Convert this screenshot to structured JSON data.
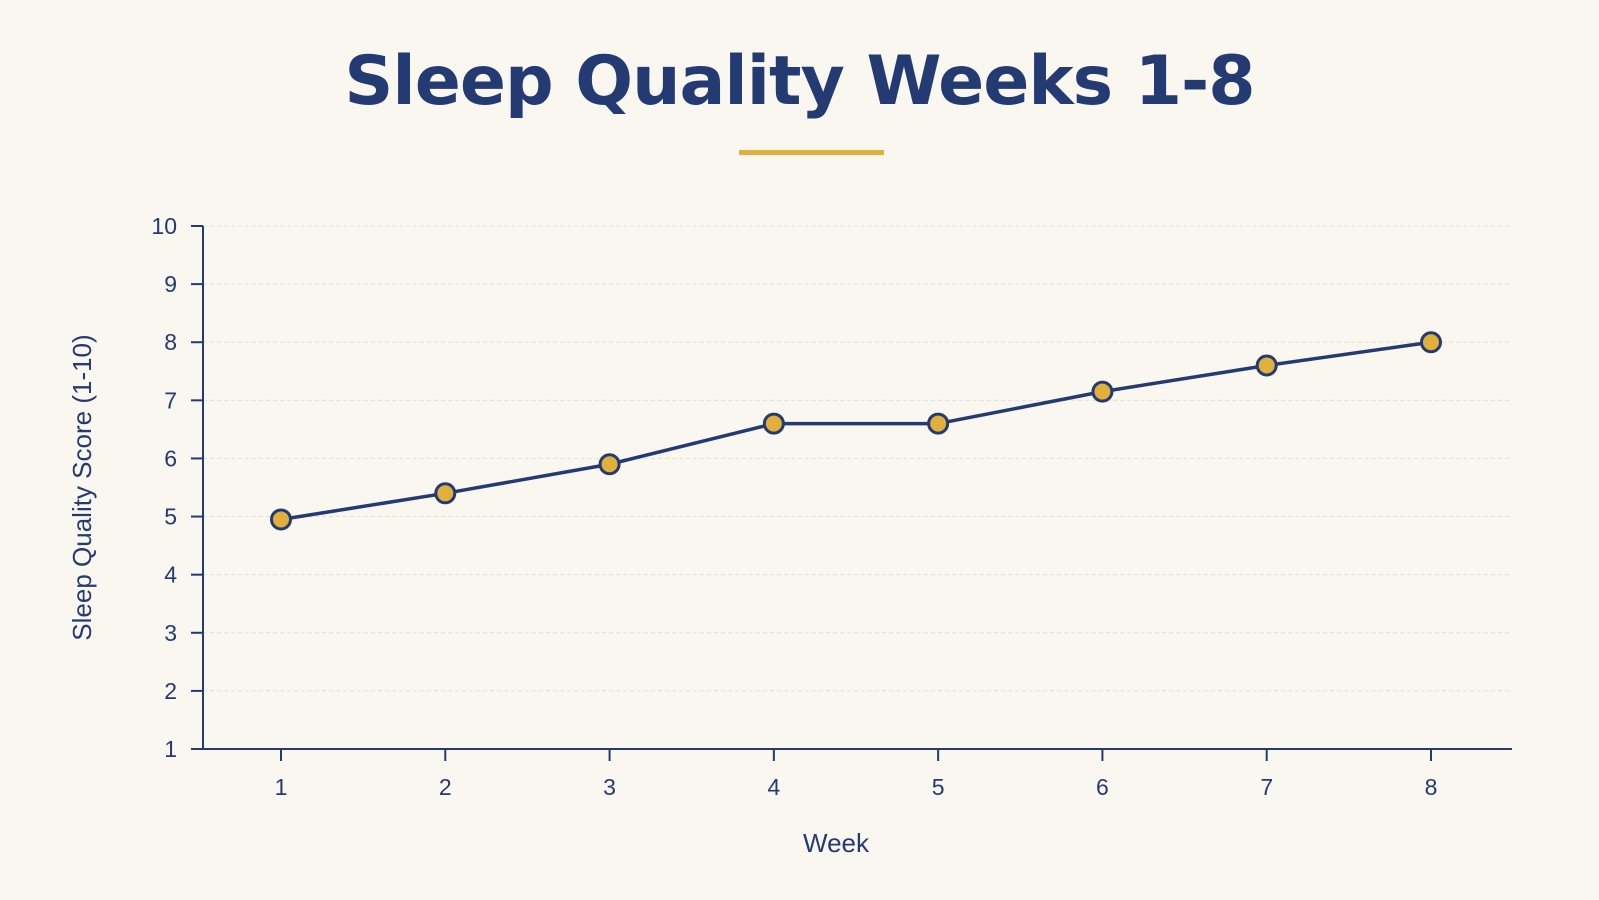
{
  "chart_data": {
    "type": "line",
    "title": "Sleep Quality Weeks 1-8",
    "xlabel": "Week",
    "ylabel": "Sleep Quality Score (1-10)",
    "x": [
      1,
      2,
      3,
      4,
      5,
      6,
      7,
      8
    ],
    "y": [
      4.95,
      5.4,
      5.9,
      6.6,
      6.6,
      7.15,
      7.6,
      8.0
    ],
    "ylim": [
      1,
      10
    ],
    "yticks": [
      1,
      2,
      3,
      4,
      5,
      6,
      7,
      8,
      9,
      10
    ],
    "grid": true,
    "colors": {
      "line": "#243a73",
      "marker_fill": "#e0b03a",
      "marker_stroke": "#243a73",
      "axis": "#243a73",
      "grid": "#e2e0d8",
      "accent": "#e0b03a",
      "background": "#f9f7f0"
    }
  }
}
